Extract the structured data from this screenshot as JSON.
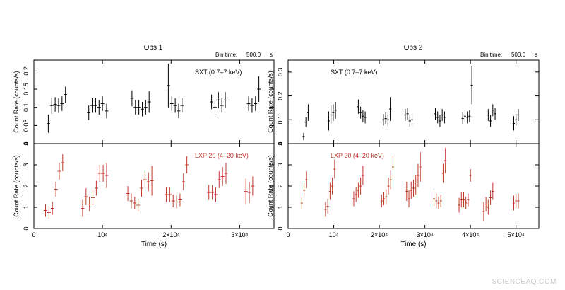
{
  "watermark": "SCIENCEAQ.COM",
  "colors": {
    "soft": "#000000",
    "hard": "#c0392b",
    "frame": "#000000"
  },
  "chart_data": [
    {
      "type": "scatter",
      "title": "Obs 1",
      "bin_time_label": "Bin time:",
      "bin_time_value": "500.0",
      "bin_time_unit": "s",
      "xlabel": "Time (s)",
      "xlim": [
        0,
        35000
      ],
      "xticks": [
        0,
        10000,
        20000,
        30000
      ],
      "xtick_labels": [
        "0",
        "10⁴",
        "2×10⁴",
        "3×10⁴"
      ],
      "panels": [
        {
          "series_label": "SXT  (0.7–7 keV)",
          "color": "#000000",
          "ylabel": "Count Rate  (counts/s)",
          "ylim": [
            0,
            0.23
          ],
          "yticks": [
            0,
            0.05,
            0.1,
            0.15,
            0.2
          ],
          "ytick_labels": [
            "0",
            "0.05",
            "0.1",
            "0.15",
            "0.2"
          ],
          "points": [
            {
              "x": 2100,
              "y": 0.055,
              "err": 0.025
            },
            {
              "x": 2600,
              "y": 0.105,
              "err": 0.022
            },
            {
              "x": 3100,
              "y": 0.108,
              "err": 0.02
            },
            {
              "x": 3600,
              "y": 0.105,
              "err": 0.02
            },
            {
              "x": 4100,
              "y": 0.11,
              "err": 0.02
            },
            {
              "x": 4600,
              "y": 0.135,
              "err": 0.022
            },
            {
              "x": 8000,
              "y": 0.085,
              "err": 0.02
            },
            {
              "x": 8500,
              "y": 0.105,
              "err": 0.02
            },
            {
              "x": 9000,
              "y": 0.105,
              "err": 0.02
            },
            {
              "x": 9500,
              "y": 0.1,
              "err": 0.02
            },
            {
              "x": 10000,
              "y": 0.11,
              "err": 0.02
            },
            {
              "x": 10600,
              "y": 0.09,
              "err": 0.02
            },
            {
              "x": 14300,
              "y": 0.125,
              "err": 0.022
            },
            {
              "x": 14800,
              "y": 0.1,
              "err": 0.02
            },
            {
              "x": 15300,
              "y": 0.1,
              "err": 0.02
            },
            {
              "x": 15800,
              "y": 0.095,
              "err": 0.02
            },
            {
              "x": 16300,
              "y": 0.1,
              "err": 0.02
            },
            {
              "x": 16800,
              "y": 0.115,
              "err": 0.03
            },
            {
              "x": 19600,
              "y": 0.16,
              "err": 0.06
            },
            {
              "x": 20100,
              "y": 0.11,
              "err": 0.02
            },
            {
              "x": 20600,
              "y": 0.105,
              "err": 0.02
            },
            {
              "x": 21100,
              "y": 0.09,
              "err": 0.02
            },
            {
              "x": 21600,
              "y": 0.105,
              "err": 0.02
            },
            {
              "x": 25900,
              "y": 0.115,
              "err": 0.02
            },
            {
              "x": 26400,
              "y": 0.1,
              "err": 0.02
            },
            {
              "x": 26900,
              "y": 0.12,
              "err": 0.022
            },
            {
              "x": 27400,
              "y": 0.105,
              "err": 0.02
            },
            {
              "x": 27900,
              "y": 0.12,
              "err": 0.022
            },
            {
              "x": 31300,
              "y": 0.11,
              "err": 0.02
            },
            {
              "x": 31800,
              "y": 0.105,
              "err": 0.02
            },
            {
              "x": 32300,
              "y": 0.11,
              "err": 0.02
            },
            {
              "x": 32800,
              "y": 0.15,
              "err": 0.035
            }
          ]
        },
        {
          "series_label": "LXP 20  (4–20 keV)",
          "color": "#c0392b",
          "ylabel": "Count Rate  (counts/s)",
          "ylim": [
            0,
            4
          ],
          "yticks": [
            0,
            1,
            2,
            3,
            4
          ],
          "ytick_labels": [
            "0",
            "1",
            "2",
            "3",
            "4"
          ],
          "points": [
            {
              "x": 1700,
              "y": 0.85,
              "err": 0.3
            },
            {
              "x": 2200,
              "y": 0.75,
              "err": 0.3
            },
            {
              "x": 2700,
              "y": 0.95,
              "err": 0.3
            },
            {
              "x": 3200,
              "y": 1.85,
              "err": 0.35
            },
            {
              "x": 3700,
              "y": 2.7,
              "err": 0.4
            },
            {
              "x": 4200,
              "y": 3.1,
              "err": 0.4
            },
            {
              "x": 7100,
              "y": 0.95,
              "err": 0.4
            },
            {
              "x": 7600,
              "y": 1.5,
              "err": 0.4
            },
            {
              "x": 8100,
              "y": 1.15,
              "err": 0.35
            },
            {
              "x": 8600,
              "y": 1.45,
              "err": 0.35
            },
            {
              "x": 9100,
              "y": 1.9,
              "err": 0.35
            },
            {
              "x": 9600,
              "y": 2.6,
              "err": 0.4
            },
            {
              "x": 10100,
              "y": 2.6,
              "err": 0.4
            },
            {
              "x": 10600,
              "y": 2.5,
              "err": 0.6
            },
            {
              "x": 13700,
              "y": 1.65,
              "err": 0.35
            },
            {
              "x": 14200,
              "y": 1.3,
              "err": 0.35
            },
            {
              "x": 14700,
              "y": 1.2,
              "err": 0.3
            },
            {
              "x": 15200,
              "y": 1.1,
              "err": 0.3
            },
            {
              "x": 15700,
              "y": 1.9,
              "err": 0.4
            },
            {
              "x": 16200,
              "y": 2.3,
              "err": 0.4
            },
            {
              "x": 16700,
              "y": 2.2,
              "err": 0.45
            },
            {
              "x": 17200,
              "y": 2.25,
              "err": 0.7
            },
            {
              "x": 19300,
              "y": 1.6,
              "err": 0.35
            },
            {
              "x": 19800,
              "y": 1.6,
              "err": 0.35
            },
            {
              "x": 20300,
              "y": 1.3,
              "err": 0.3
            },
            {
              "x": 20800,
              "y": 1.25,
              "err": 0.3
            },
            {
              "x": 21300,
              "y": 1.35,
              "err": 0.3
            },
            {
              "x": 21800,
              "y": 2.2,
              "err": 0.4
            },
            {
              "x": 22300,
              "y": 3.0,
              "err": 0.4
            },
            {
              "x": 25500,
              "y": 1.7,
              "err": 0.35
            },
            {
              "x": 26000,
              "y": 1.7,
              "err": 0.35
            },
            {
              "x": 26500,
              "y": 1.6,
              "err": 0.35
            },
            {
              "x": 27000,
              "y": 2.3,
              "err": 0.4
            },
            {
              "x": 27500,
              "y": 2.45,
              "err": 0.45
            },
            {
              "x": 28000,
              "y": 2.6,
              "err": 0.5
            },
            {
              "x": 30900,
              "y": 1.75,
              "err": 0.6
            },
            {
              "x": 31400,
              "y": 1.7,
              "err": 0.5
            },
            {
              "x": 31900,
              "y": 2.0,
              "err": 0.45
            }
          ]
        }
      ]
    },
    {
      "type": "scatter",
      "title": "Obs 2",
      "bin_time_label": "Bin time:",
      "bin_time_value": "500.0",
      "bin_time_unit": "s",
      "xlabel": "Time (s)",
      "xlim": [
        0,
        55000
      ],
      "xticks": [
        0,
        10000,
        20000,
        30000,
        40000,
        50000
      ],
      "xtick_labels": [
        "0",
        "10⁴",
        "2×10⁴",
        "3×10⁴",
        "4×10⁴",
        "5×10⁴"
      ],
      "panels": [
        {
          "series_label": "SXT  (0.7–7 keV)",
          "color": "#000000",
          "ylabel": "Count Rate  (counts/s)",
          "ylim": [
            0,
            0.35
          ],
          "yticks": [
            0,
            0.1,
            0.2,
            0.3
          ],
          "ytick_labels": [
            "0",
            "0.1",
            "0.2",
            "0.3"
          ],
          "points": [
            {
              "x": 3400,
              "y": 0.03,
              "err": 0.015
            },
            {
              "x": 3900,
              "y": 0.09,
              "err": 0.02
            },
            {
              "x": 4400,
              "y": 0.13,
              "err": 0.035
            },
            {
              "x": 8900,
              "y": 0.095,
              "err": 0.04
            },
            {
              "x": 9400,
              "y": 0.12,
              "err": 0.04
            },
            {
              "x": 9900,
              "y": 0.13,
              "err": 0.035
            },
            {
              "x": 10400,
              "y": 0.14,
              "err": 0.035
            },
            {
              "x": 15400,
              "y": 0.155,
              "err": 0.03
            },
            {
              "x": 15900,
              "y": 0.13,
              "err": 0.025
            },
            {
              "x": 16400,
              "y": 0.115,
              "err": 0.025
            },
            {
              "x": 16900,
              "y": 0.11,
              "err": 0.025
            },
            {
              "x": 20900,
              "y": 0.1,
              "err": 0.025
            },
            {
              "x": 21400,
              "y": 0.105,
              "err": 0.025
            },
            {
              "x": 21900,
              "y": 0.1,
              "err": 0.025
            },
            {
              "x": 22400,
              "y": 0.145,
              "err": 0.05
            },
            {
              "x": 25700,
              "y": 0.12,
              "err": 0.025
            },
            {
              "x": 26200,
              "y": 0.125,
              "err": 0.025
            },
            {
              "x": 26700,
              "y": 0.095,
              "err": 0.025
            },
            {
              "x": 27200,
              "y": 0.1,
              "err": 0.025
            },
            {
              "x": 32300,
              "y": 0.125,
              "err": 0.025
            },
            {
              "x": 32800,
              "y": 0.11,
              "err": 0.025
            },
            {
              "x": 33300,
              "y": 0.095,
              "err": 0.025
            },
            {
              "x": 33800,
              "y": 0.12,
              "err": 0.025
            },
            {
              "x": 34300,
              "y": 0.11,
              "err": 0.025
            },
            {
              "x": 38300,
              "y": 0.105,
              "err": 0.025
            },
            {
              "x": 38800,
              "y": 0.115,
              "err": 0.025
            },
            {
              "x": 39300,
              "y": 0.11,
              "err": 0.025
            },
            {
              "x": 39800,
              "y": 0.115,
              "err": 0.025
            },
            {
              "x": 40300,
              "y": 0.245,
              "err": 0.08
            },
            {
              "x": 43900,
              "y": 0.12,
              "err": 0.025
            },
            {
              "x": 44400,
              "y": 0.095,
              "err": 0.025
            },
            {
              "x": 44900,
              "y": 0.14,
              "err": 0.025
            },
            {
              "x": 45400,
              "y": 0.125,
              "err": 0.025
            },
            {
              "x": 49500,
              "y": 0.085,
              "err": 0.03
            },
            {
              "x": 50000,
              "y": 0.1,
              "err": 0.025
            },
            {
              "x": 50500,
              "y": 0.12,
              "err": 0.025
            }
          ]
        },
        {
          "series_label": "LXP 20  (4–20 keV)",
          "color": "#c0392b",
          "ylabel": "Count Rate  (counts/s)",
          "ylim": [
            0,
            4
          ],
          "yticks": [
            0,
            1,
            2,
            3,
            4
          ],
          "ytick_labels": [
            "0",
            "1",
            "2",
            "3",
            "4"
          ],
          "points": [
            {
              "x": 3000,
              "y": 1.2,
              "err": 0.3
            },
            {
              "x": 3500,
              "y": 1.8,
              "err": 0.35
            },
            {
              "x": 4000,
              "y": 2.3,
              "err": 0.4
            },
            {
              "x": 8200,
              "y": 0.9,
              "err": 0.35
            },
            {
              "x": 8700,
              "y": 1.05,
              "err": 0.35
            },
            {
              "x": 9200,
              "y": 1.75,
              "err": 0.4
            },
            {
              "x": 9700,
              "y": 2.0,
              "err": 0.4
            },
            {
              "x": 10200,
              "y": 2.8,
              "err": 0.45
            },
            {
              "x": 14400,
              "y": 1.4,
              "err": 0.35
            },
            {
              "x": 14900,
              "y": 1.6,
              "err": 0.35
            },
            {
              "x": 15400,
              "y": 1.8,
              "err": 0.35
            },
            {
              "x": 15900,
              "y": 2.0,
              "err": 0.4
            },
            {
              "x": 16400,
              "y": 2.5,
              "err": 0.45
            },
            {
              "x": 20500,
              "y": 1.3,
              "err": 0.3
            },
            {
              "x": 21000,
              "y": 1.4,
              "err": 0.3
            },
            {
              "x": 21500,
              "y": 1.5,
              "err": 0.35
            },
            {
              "x": 22000,
              "y": 2.0,
              "err": 0.4
            },
            {
              "x": 22500,
              "y": 2.3,
              "err": 0.45
            },
            {
              "x": 23000,
              "y": 2.9,
              "err": 0.5
            },
            {
              "x": 26000,
              "y": 1.75,
              "err": 0.45
            },
            {
              "x": 26500,
              "y": 1.4,
              "err": 0.4
            },
            {
              "x": 27000,
              "y": 1.8,
              "err": 0.4
            },
            {
              "x": 27500,
              "y": 1.9,
              "err": 0.4
            },
            {
              "x": 28000,
              "y": 2.05,
              "err": 0.45
            },
            {
              "x": 28500,
              "y": 2.5,
              "err": 0.55
            },
            {
              "x": 29000,
              "y": 2.9,
              "err": 0.7
            },
            {
              "x": 32000,
              "y": 1.4,
              "err": 0.35
            },
            {
              "x": 32500,
              "y": 1.3,
              "err": 0.35
            },
            {
              "x": 33000,
              "y": 1.2,
              "err": 0.3
            },
            {
              "x": 33500,
              "y": 1.3,
              "err": 0.3
            },
            {
              "x": 34000,
              "y": 2.6,
              "err": 0.45
            },
            {
              "x": 34500,
              "y": 3.2,
              "err": 0.6
            },
            {
              "x": 37500,
              "y": 1.1,
              "err": 0.35
            },
            {
              "x": 38000,
              "y": 1.35,
              "err": 0.35
            },
            {
              "x": 38500,
              "y": 1.35,
              "err": 0.35
            },
            {
              "x": 39000,
              "y": 1.2,
              "err": 0.3
            },
            {
              "x": 39500,
              "y": 1.35,
              "err": 0.3
            },
            {
              "x": 40000,
              "y": 2.5,
              "err": 0.3
            },
            {
              "x": 42900,
              "y": 0.8,
              "err": 0.45
            },
            {
              "x": 43400,
              "y": 1.15,
              "err": 0.35
            },
            {
              "x": 43900,
              "y": 1.0,
              "err": 0.35
            },
            {
              "x": 44400,
              "y": 1.45,
              "err": 0.35
            },
            {
              "x": 44900,
              "y": 1.75,
              "err": 0.4
            },
            {
              "x": 49500,
              "y": 1.2,
              "err": 0.35
            },
            {
              "x": 50000,
              "y": 1.3,
              "err": 0.35
            },
            {
              "x": 50500,
              "y": 1.3,
              "err": 0.35
            }
          ]
        }
      ]
    }
  ]
}
